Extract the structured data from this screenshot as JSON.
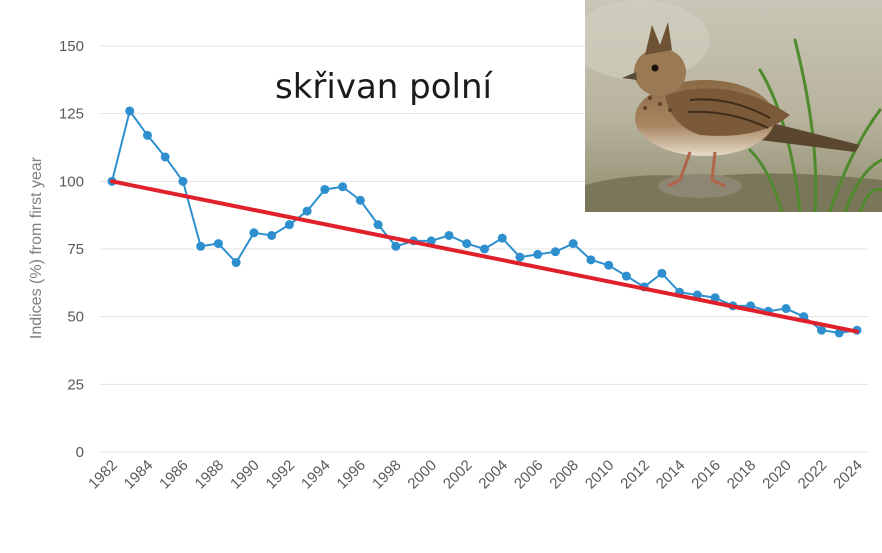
{
  "chart_data": {
    "type": "line",
    "title": "skřivan polní",
    "ylabel": "Indices (%) from first year",
    "xlabel": "",
    "ylim": [
      0,
      150
    ],
    "yticks": [
      0,
      25,
      50,
      75,
      100,
      125,
      150
    ],
    "xticks": [
      1982,
      1984,
      1986,
      1988,
      1990,
      1992,
      1994,
      1996,
      1998,
      2000,
      2002,
      2004,
      2006,
      2008,
      2010,
      2012,
      2014,
      2016,
      2018,
      2020,
      2022,
      2024
    ],
    "x": [
      1982,
      1983,
      1984,
      1985,
      1986,
      1987,
      1988,
      1989,
      1990,
      1991,
      1992,
      1993,
      1994,
      1995,
      1996,
      1997,
      1998,
      1999,
      2000,
      2001,
      2002,
      2003,
      2004,
      2005,
      2006,
      2007,
      2008,
      2009,
      2010,
      2011,
      2012,
      2013,
      2014,
      2015,
      2016,
      2017,
      2018,
      2019,
      2020,
      2021,
      2022,
      2023,
      2024
    ],
    "series": [
      {
        "color": "#2e8fcf",
        "values": [
          100,
          126,
          117,
          109,
          100,
          76,
          77,
          70,
          81,
          80,
          84,
          89,
          97,
          98,
          93,
          84,
          76,
          78,
          78,
          80,
          77,
          75,
          79,
          72,
          73,
          74,
          77,
          71,
          69,
          65,
          61,
          66,
          59,
          58,
          57,
          54,
          54,
          52,
          53,
          50,
          45,
          44,
          45
        ]
      }
    ],
    "trend": {
      "color": "#e0202a",
      "x": [
        1982,
        2024
      ],
      "y": [
        100,
        44.5
      ]
    },
    "grid": "horizontal",
    "legend": "none",
    "photo": {
      "subject": "skylark-photo"
    }
  }
}
